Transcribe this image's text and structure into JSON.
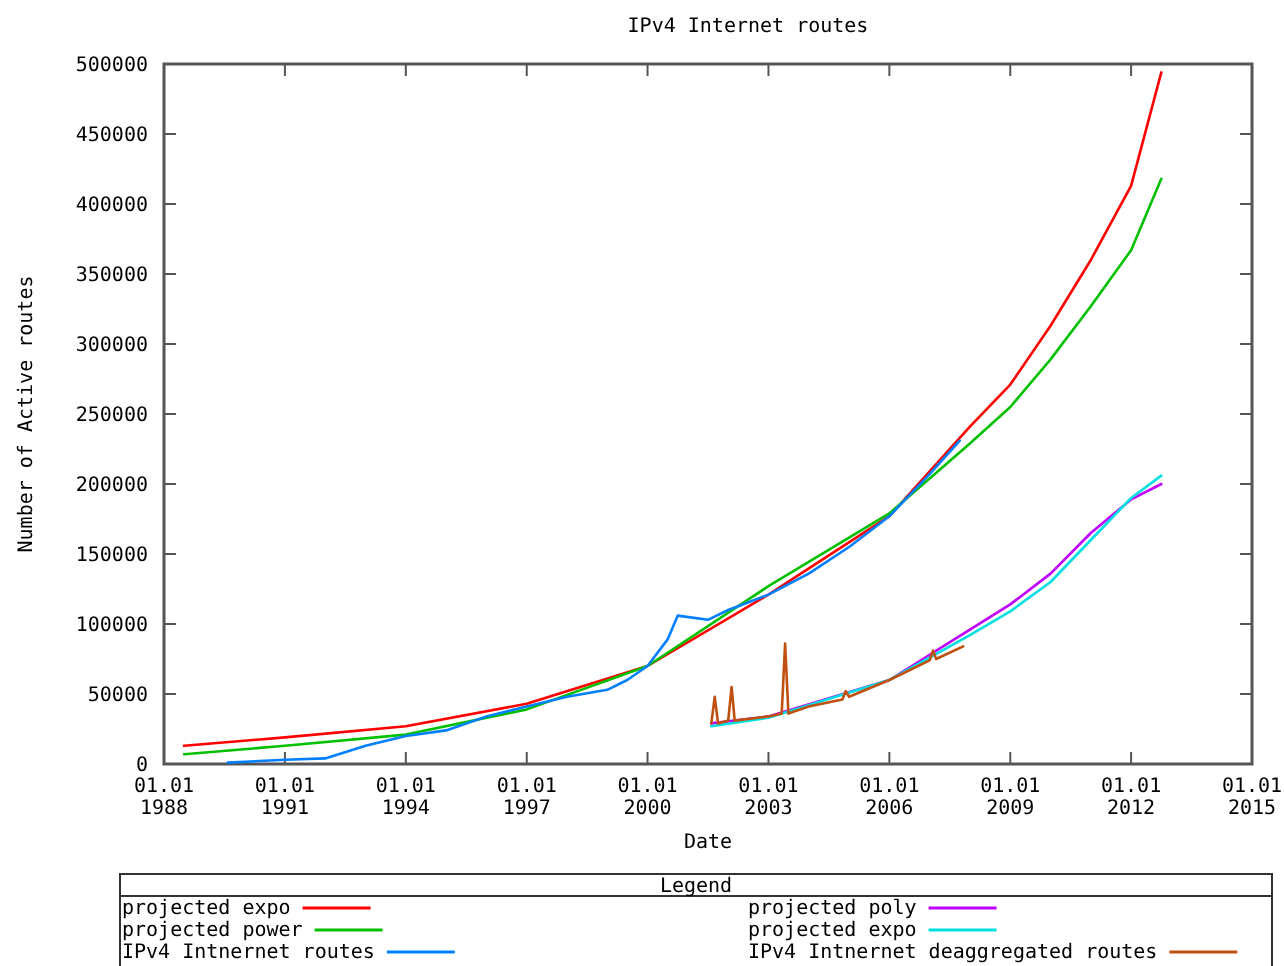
{
  "chart_data": {
    "type": "line",
    "title": "IPv4 Internet routes",
    "xlabel": "Date",
    "ylabel": "Number of Active routes",
    "legend_title": "Legend",
    "xlim": [
      "1988-01-01",
      "2015-01-01"
    ],
    "xticks": [
      {
        "value": "1988-01-01",
        "label": "01.01\n1988"
      },
      {
        "value": "1991-01-01",
        "label": "01.01\n1991"
      },
      {
        "value": "1994-01-01",
        "label": "01.01\n1994"
      },
      {
        "value": "1997-01-01",
        "label": "01.01\n1997"
      },
      {
        "value": "2000-01-01",
        "label": "01.01\n2000"
      },
      {
        "value": "2003-01-01",
        "label": "01.01\n2003"
      },
      {
        "value": "2006-01-01",
        "label": "01.01\n2006"
      },
      {
        "value": "2009-01-01",
        "label": "01.01\n2009"
      },
      {
        "value": "2012-01-01",
        "label": "01.01\n2012"
      },
      {
        "value": "2015-01-01",
        "label": "01.01\n2015"
      }
    ],
    "ylim": [
      0,
      500000
    ],
    "yticks": [
      0,
      50000,
      100000,
      150000,
      200000,
      250000,
      300000,
      350000,
      400000,
      450000,
      500000
    ],
    "grid": false,
    "legend": "bottom",
    "marker": "none",
    "line_style": "solid",
    "series": [
      {
        "name": "projected expo",
        "color": "#ff0000",
        "x": [
          "1988-07",
          "1991-01",
          "1994-01",
          "1997-01",
          "2000-01",
          "2003-01",
          "2006-01",
          "2008-01",
          "2009-01",
          "2010-01",
          "2011-01",
          "2012-01",
          "2012-10"
        ],
        "values": [
          13000,
          19000,
          27000,
          43000,
          70000,
          121000,
          177000,
          241000,
          271000,
          313000,
          360000,
          413000,
          494000
        ]
      },
      {
        "name": "projected power",
        "color": "#00c000",
        "x": [
          "1988-07",
          "1991-01",
          "1994-01",
          "1997-01",
          "2000-01",
          "2003-01",
          "2006-01",
          "2008-01",
          "2009-01",
          "2010-01",
          "2011-01",
          "2012-01",
          "2012-10"
        ],
        "values": [
          7000,
          13000,
          21000,
          39000,
          70000,
          127000,
          179000,
          229000,
          255000,
          289000,
          327000,
          367000,
          418000
        ]
      },
      {
        "name": "IPv4 Intnernet routes",
        "color": "#0080ff",
        "x": [
          "1989-08",
          "1991-01",
          "1992-01",
          "1993-01",
          "1994-01",
          "1995-01",
          "1996-01",
          "1997-01",
          "1998-01",
          "1999-01",
          "1999-07",
          "2000-01",
          "2000-07",
          "2000-10",
          "2001-07",
          "2002-01",
          "2003-01",
          "2004-01",
          "2005-01",
          "2006-01",
          "2007-01",
          "2007-10"
        ],
        "values": [
          1000,
          3000,
          4000,
          13000,
          20000,
          24000,
          34000,
          41000,
          48000,
          53000,
          60000,
          70000,
          89000,
          106000,
          103000,
          110000,
          121000,
          136000,
          155000,
          177000,
          207000,
          231000
        ]
      },
      {
        "name": "projected poly",
        "color": "#c000ff",
        "x": [
          "2001-08",
          "2003-01",
          "2006-01",
          "2008-01",
          "2009-01",
          "2010-01",
          "2011-01",
          "2012-01",
          "2012-10"
        ],
        "values": [
          29000,
          34000,
          60000,
          96000,
          114000,
          136000,
          165000,
          189000,
          200000
        ]
      },
      {
        "name": "projected expo",
        "color": "#00e0e0",
        "x": [
          "2001-08",
          "2003-01",
          "2006-01",
          "2008-01",
          "2009-01",
          "2010-01",
          "2011-01",
          "2012-01",
          "2012-10"
        ],
        "values": [
          27000,
          33000,
          60000,
          92000,
          109000,
          130000,
          160000,
          190000,
          206000
        ]
      },
      {
        "name": "IPv4 Intnernet deaggregated routes",
        "color": "#c05010",
        "x": [
          "2001-08",
          "2001-09",
          "2001-10",
          "2002-01",
          "2002-02",
          "2002-03",
          "2003-01",
          "2003-05",
          "2003-06",
          "2003-07",
          "2004-01",
          "2004-11",
          "2004-12",
          "2005-01",
          "2006-01",
          "2007-01",
          "2007-02",
          "2007-03",
          "2007-11"
        ],
        "values": [
          29000,
          48000,
          29000,
          31000,
          55000,
          31000,
          34000,
          36000,
          86000,
          36000,
          41000,
          46000,
          52000,
          48000,
          60000,
          74000,
          81000,
          75000,
          84000
        ]
      }
    ]
  }
}
